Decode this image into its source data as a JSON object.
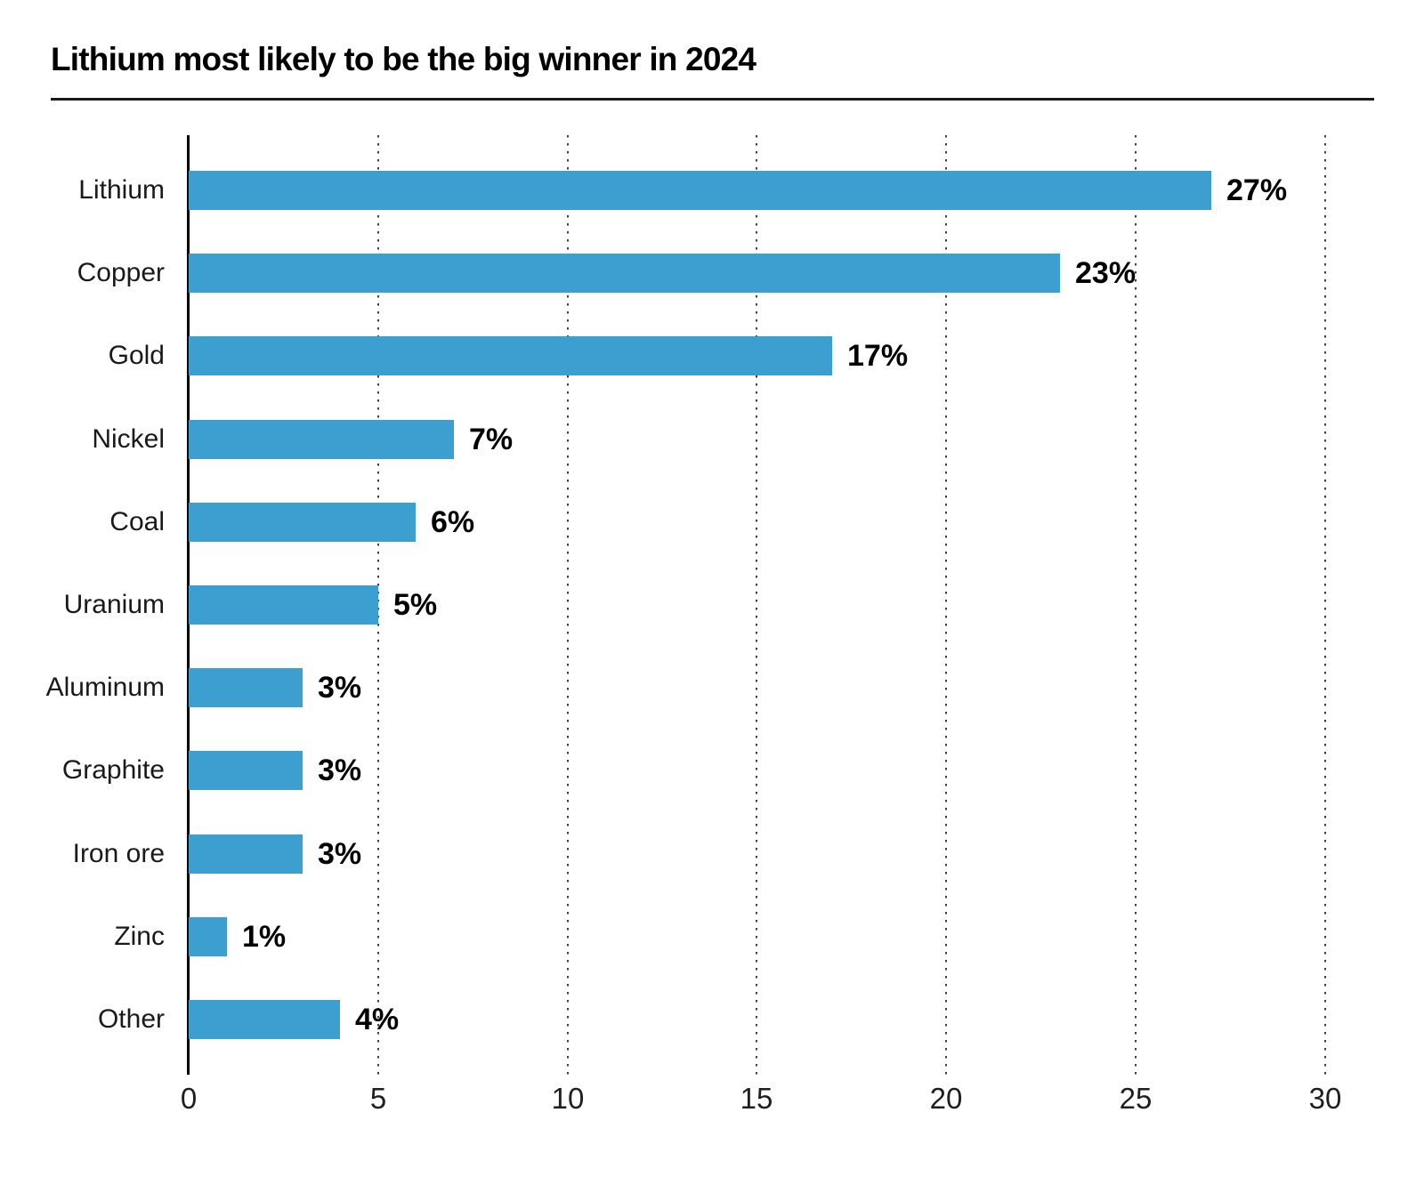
{
  "chart_data": {
    "type": "bar",
    "orientation": "horizontal",
    "title": "Lithium most likely to be the big winner in 2024",
    "categories": [
      "Lithium",
      "Copper",
      "Gold",
      "Nickel",
      "Coal",
      "Uranium",
      "Aluminum",
      "Graphite",
      "Iron ore",
      "Zinc",
      "Other"
    ],
    "values": [
      27,
      23,
      17,
      7,
      6,
      5,
      3,
      3,
      3,
      1,
      4
    ],
    "value_labels": [
      "27%",
      "23%",
      "17%",
      "7%",
      "6%",
      "5%",
      "3%",
      "3%",
      "3%",
      "1%",
      "4%"
    ],
    "x_ticks": [
      0,
      5,
      10,
      15,
      20,
      25,
      30
    ],
    "x_tick_labels": [
      "0",
      "5",
      "10",
      "15",
      "20",
      "25",
      "30"
    ],
    "xlim": [
      0,
      30
    ],
    "xlabel": "",
    "ylabel": "",
    "grid": "vertical-dotted",
    "legend": "none",
    "colors": {
      "bar": "#3D9ED0",
      "grid_dots": "#3f3f3f",
      "y_axis": "#000000",
      "title_text": "#000000",
      "category_text": "#1a1a1a",
      "value_text": "#000000",
      "tick_text": "#1f1f1f",
      "background": "#ffffff"
    }
  }
}
